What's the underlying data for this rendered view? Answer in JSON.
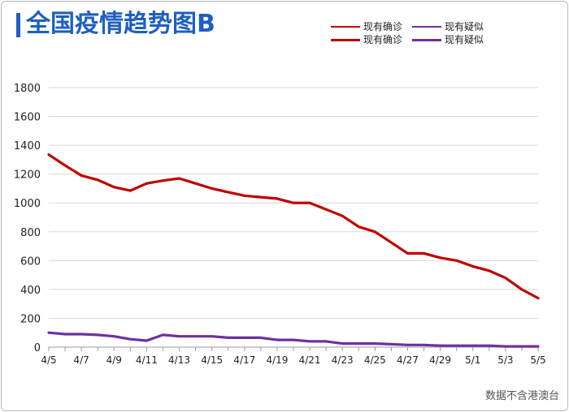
{
  "page": {
    "title": "全国疫情趋势图B",
    "note": "数据不含港澳台"
  },
  "legend": [
    {
      "label": "现有确诊",
      "color": "#c00000",
      "style": "thin"
    },
    {
      "label": "现有疑似",
      "color": "#7030a0",
      "style": "thin"
    },
    {
      "label": "现有确诊",
      "color": "#c00000",
      "style": "thick"
    },
    {
      "label": "现有疑似",
      "color": "#7030a0",
      "style": "thick"
    }
  ],
  "chart_data": {
    "type": "line",
    "x": [
      "4/5",
      "4/6",
      "4/7",
      "4/8",
      "4/9",
      "4/10",
      "4/11",
      "4/12",
      "4/13",
      "4/14",
      "4/15",
      "4/16",
      "4/17",
      "4/18",
      "4/19",
      "4/20",
      "4/21",
      "4/22",
      "4/23",
      "4/24",
      "4/25",
      "4/26",
      "4/27",
      "4/28",
      "4/29",
      "4/30",
      "5/1",
      "5/2",
      "5/3",
      "5/4",
      "5/5"
    ],
    "xtick_labels": [
      "4/5",
      "4/7",
      "4/9",
      "4/11",
      "4/13",
      "4/15",
      "4/17",
      "4/19",
      "4/21",
      "4/23",
      "4/25",
      "4/27",
      "4/29",
      "5/1",
      "5/3",
      "5/5"
    ],
    "yticks": [
      0,
      200,
      400,
      600,
      800,
      1000,
      1200,
      1400,
      1600,
      1800
    ],
    "ylim": [
      0,
      1800
    ],
    "grid": true,
    "legend_position": "top-right",
    "series": [
      {
        "name": "现有确诊",
        "color": "#c00000",
        "values": [
          1335,
          1260,
          1190,
          1160,
          1110,
          1085,
          1135,
          1155,
          1170,
          1135,
          1100,
          1075,
          1050,
          1040,
          1030,
          1000,
          1000,
          955,
          910,
          835,
          800,
          725,
          650,
          650,
          620,
          600,
          560,
          530,
          480,
          400,
          340
        ]
      },
      {
        "name": "现有疑似",
        "color": "#7030a0",
        "values": [
          100,
          90,
          90,
          85,
          75,
          55,
          45,
          85,
          75,
          75,
          75,
          65,
          65,
          65,
          50,
          50,
          40,
          40,
          25,
          25,
          25,
          20,
          15,
          15,
          10,
          10,
          10,
          10,
          5,
          5,
          5
        ]
      }
    ]
  }
}
